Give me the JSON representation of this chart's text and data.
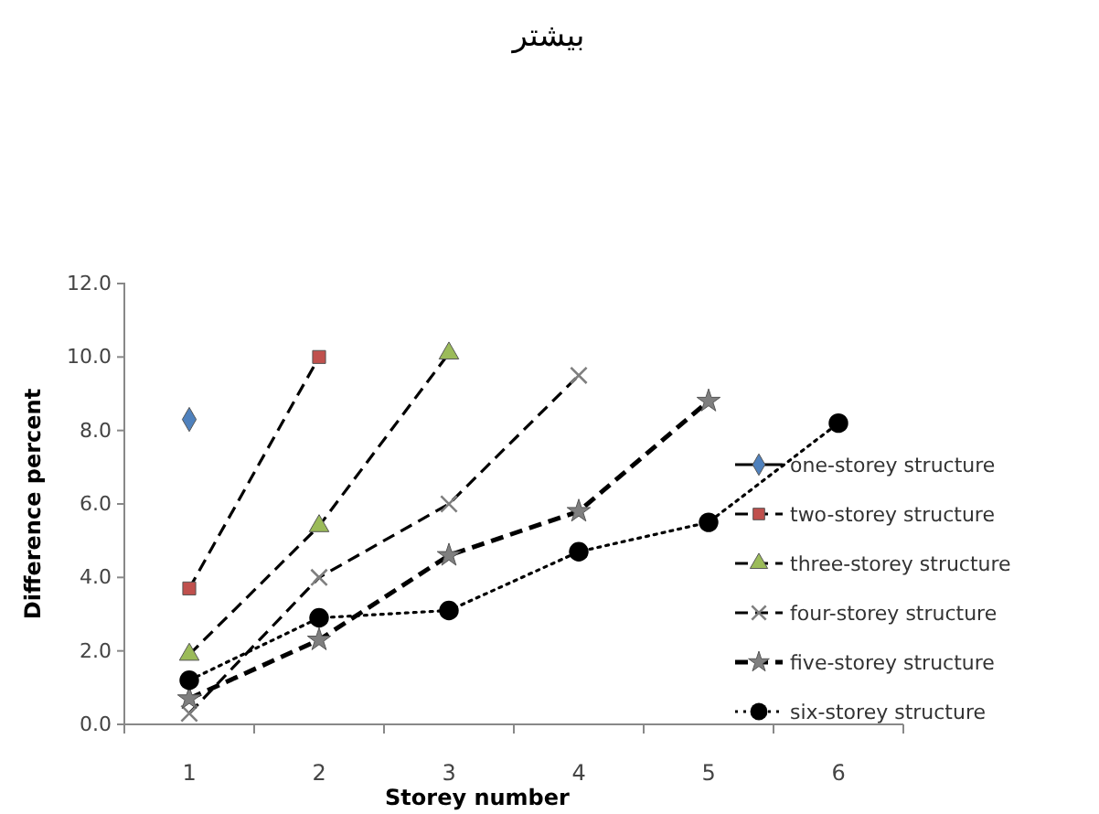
{
  "chart_data": {
    "type": "line",
    "title": "بیشتر",
    "xlabel": "Storey number",
    "ylabel": "Difference percent",
    "categories": [
      "1",
      "2",
      "3",
      "4",
      "5",
      "6"
    ],
    "ylim": [
      0,
      12
    ],
    "yticks": [
      {
        "value": 0,
        "label": "0.0"
      },
      {
        "value": 2,
        "label": "2.0"
      },
      {
        "value": 4,
        "label": "4.0"
      },
      {
        "value": 6,
        "label": "6.0"
      },
      {
        "value": 8,
        "label": "8.0"
      },
      {
        "value": 10,
        "label": "10.0"
      },
      {
        "value": 12,
        "label": "12.0"
      }
    ],
    "grid": false,
    "legend": "right",
    "series": [
      {
        "name": "one-storey structure",
        "color": "#4f81bd",
        "marker": "diamond",
        "line_style": "solid",
        "values": [
          8.3,
          null,
          null,
          null,
          null,
          null
        ]
      },
      {
        "name": "two-storey structure",
        "color": "#c0504d",
        "marker": "square",
        "line_style": "dashed",
        "values": [
          3.7,
          10.0,
          null,
          null,
          null,
          null
        ]
      },
      {
        "name": "three-storey structure",
        "color": "#9bbb59",
        "marker": "triangle",
        "line_style": "dashed",
        "values": [
          1.9,
          5.4,
          10.1,
          null,
          null,
          null
        ]
      },
      {
        "name": "four-storey structure",
        "color": "#7f7f7f",
        "marker": "cross",
        "line_style": "dashed",
        "values": [
          0.3,
          4.0,
          6.0,
          9.5,
          null,
          null
        ]
      },
      {
        "name": "five-storey structure",
        "color": "#7f7f7f",
        "marker": "star",
        "line_style": "dashed",
        "values": [
          0.7,
          2.3,
          4.6,
          5.8,
          8.8,
          null
        ]
      },
      {
        "name": "six-storey structure",
        "color": "#000000",
        "marker": "circle",
        "line_style": "dotted",
        "values": [
          1.2,
          2.9,
          3.1,
          4.7,
          5.5,
          8.2
        ]
      }
    ]
  }
}
